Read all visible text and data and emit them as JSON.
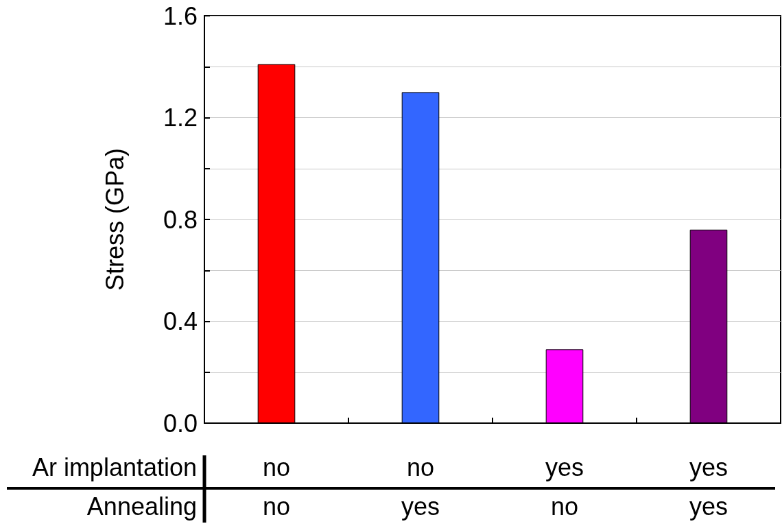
{
  "chart_data": {
    "type": "bar",
    "ylabel": "Stress (GPa)",
    "categories": [
      "no\nno",
      "no\nyes",
      "yes\nno",
      "yes\nyes"
    ],
    "values": [
      1.41,
      1.3,
      0.29,
      0.76
    ],
    "colors": [
      "#ff0000",
      "#3366ff",
      "#ff00ff",
      "#800080"
    ],
    "ylim": [
      0,
      1.6
    ],
    "yticks": [
      {
        "value": 0,
        "label": "0.0"
      },
      {
        "value": 0.2,
        "label": null
      },
      {
        "value": 0.4,
        "label": "0.4"
      },
      {
        "value": 0.6,
        "label": null
      },
      {
        "value": 0.8,
        "label": "0.8"
      },
      {
        "value": 1.0,
        "label": null
      },
      {
        "value": 1.2,
        "label": "1.2"
      },
      {
        "value": 1.4,
        "label": null
      },
      {
        "value": 1.6,
        "label": "1.6"
      }
    ],
    "grid": "y",
    "annotations": [
      "Ar implantation",
      "Annealing"
    ]
  }
}
